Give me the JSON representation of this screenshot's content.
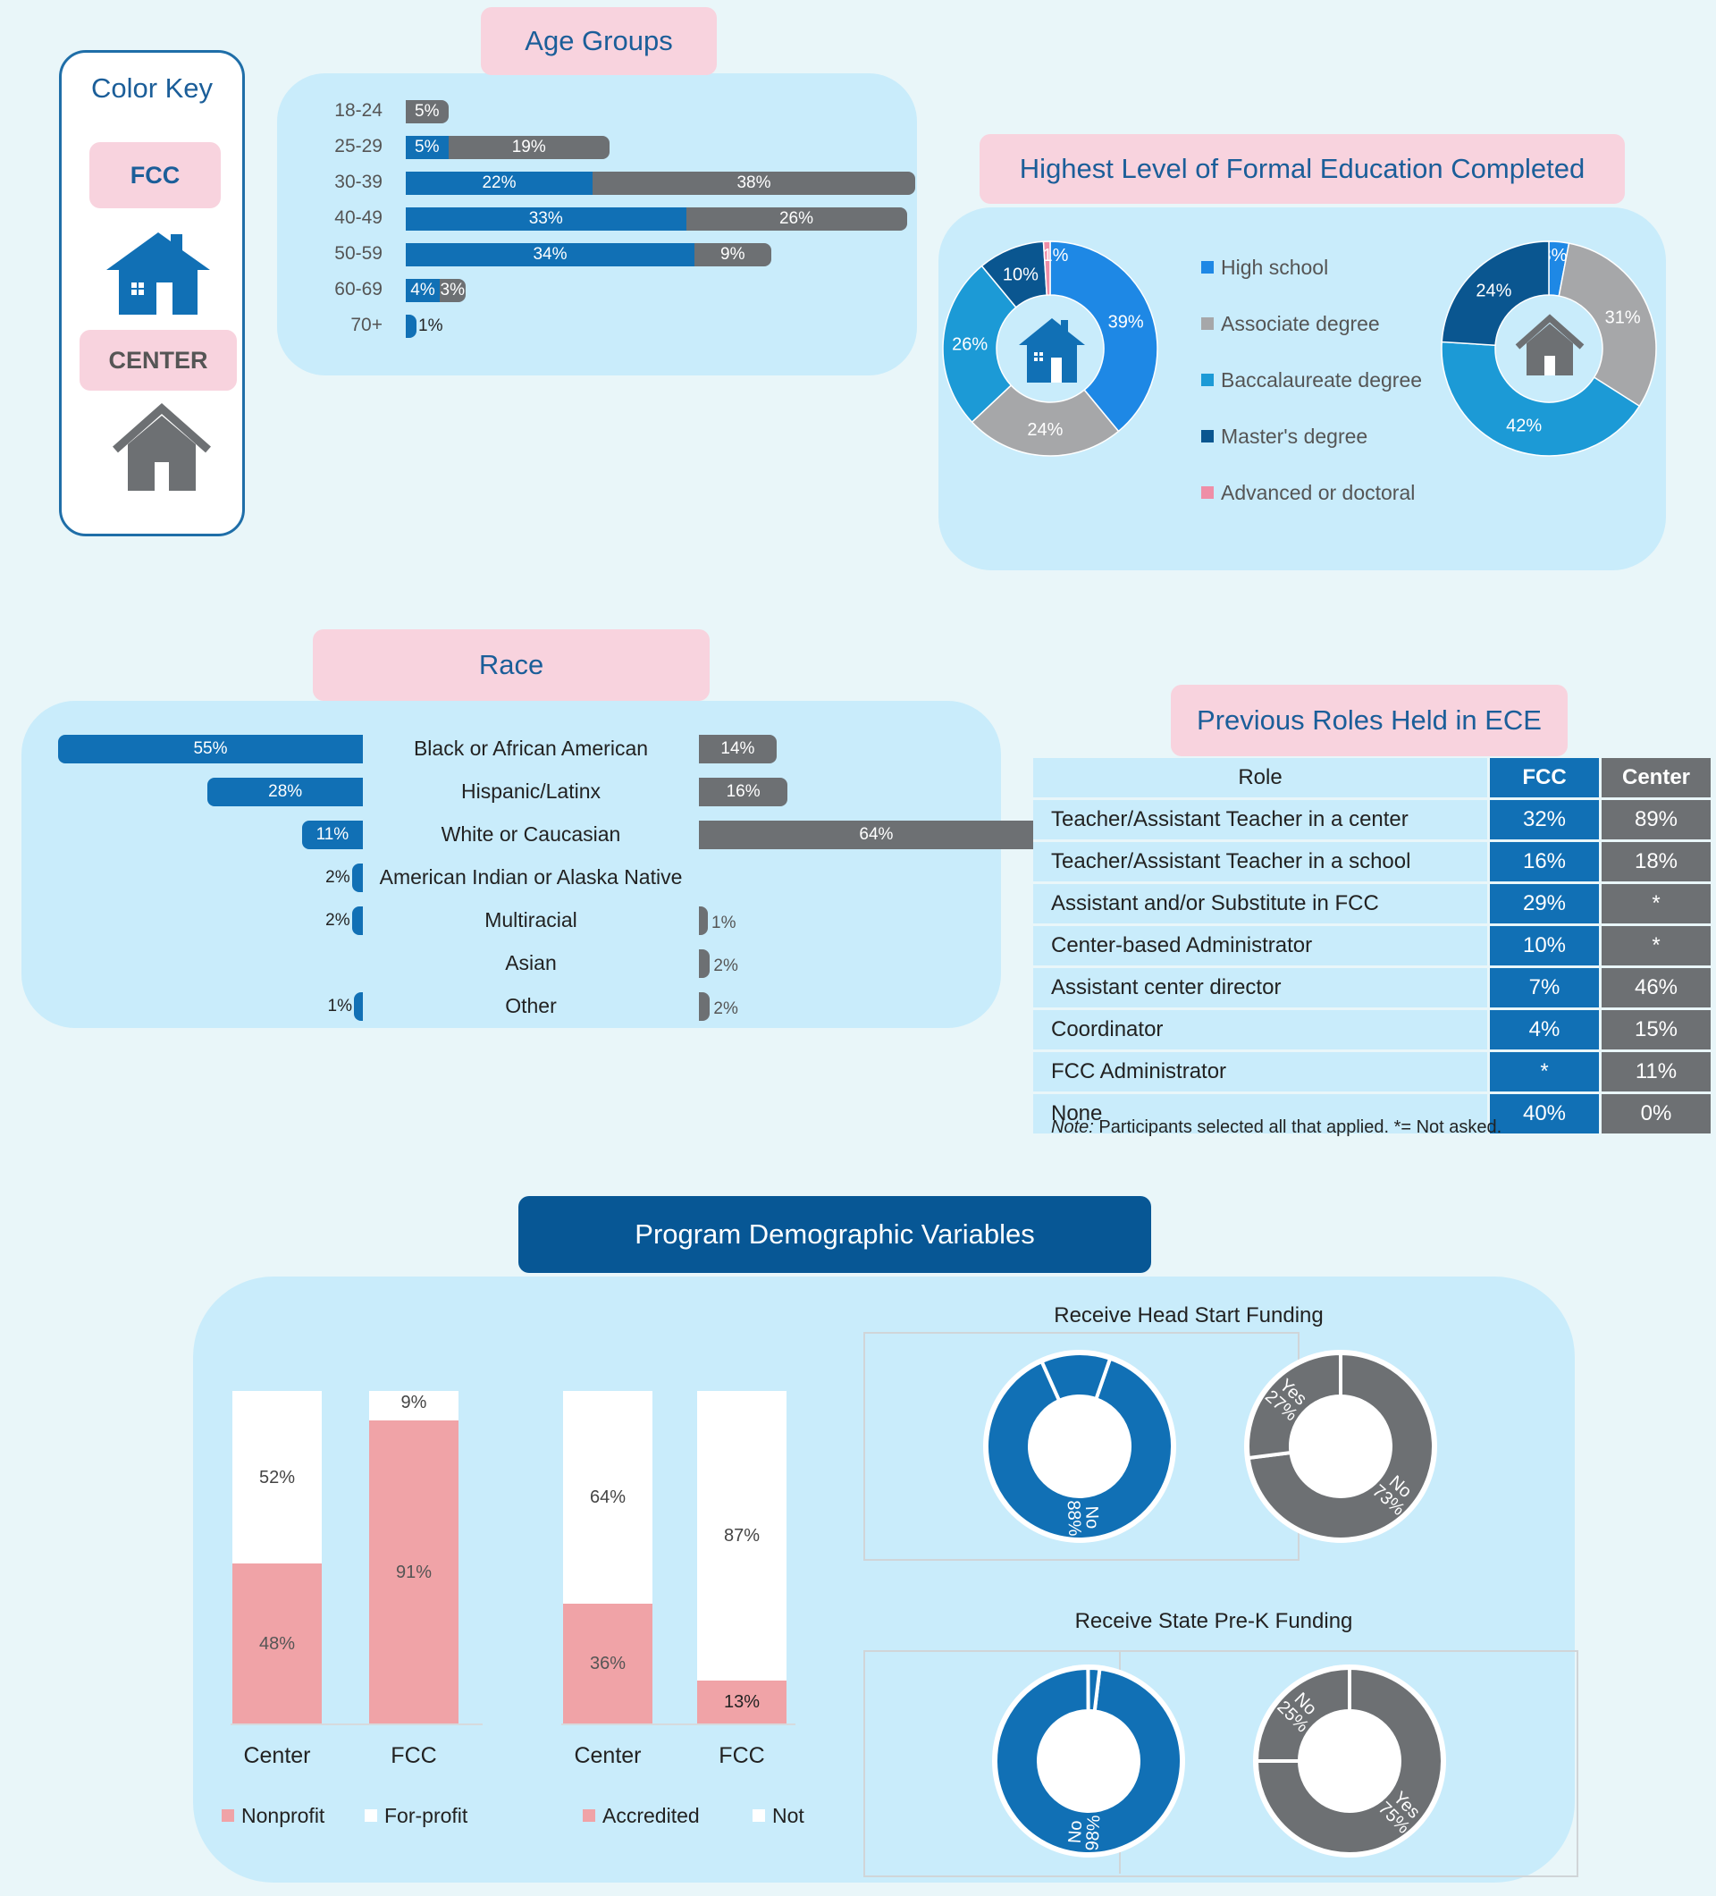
{
  "colors": {
    "fcc": "#1170b5",
    "center": "#6d7073",
    "pink": "#f8d3de",
    "panel": "#c9ecfb",
    "nonprofit": "#f0a3a7"
  },
  "color_key": {
    "title": "Color Key",
    "fcc_label": "FCC",
    "center_label": "CENTER",
    "fcc_icon": "house-icon",
    "center_icon": "house-outline-icon"
  },
  "titles": {
    "age": "Age Groups",
    "education": "Highest Level of Formal Education Completed",
    "race": "Race",
    "roles": "Previous Roles Held in ECE",
    "program": "Program Demographic Variables"
  },
  "chart_data": [
    {
      "type": "bar",
      "title": "Age Groups",
      "categories": [
        "18-24",
        "25-29",
        "30-39",
        "40-49",
        "50-59",
        "60-69",
        "70+"
      ],
      "series": [
        {
          "name": "FCC",
          "values": [
            null,
            5,
            22,
            33,
            34,
            4,
            1
          ],
          "labels": [
            "",
            "5%",
            "22%",
            "33%",
            "34%",
            "4%",
            "1%"
          ]
        },
        {
          "name": "CENTER",
          "values": [
            5,
            19,
            38,
            26,
            9,
            3,
            null
          ],
          "labels": [
            "5%",
            "19%",
            "38%",
            "26%",
            "9%",
            "3%",
            ""
          ]
        }
      ]
    },
    {
      "type": "pie",
      "title": "Highest Level of Formal Education Completed",
      "categories": [
        "High school",
        "Associate degree",
        "Baccalaureate degree",
        "Master's degree",
        "Advanced or doctoral"
      ],
      "colors": [
        "#1e88e5",
        "#a6a7a9",
        "#1c9ad6",
        "#0a5690",
        "#ef8ea7"
      ],
      "series": [
        {
          "name": "FCC",
          "values": [
            39,
            24,
            26,
            10,
            1
          ],
          "labels": [
            "39%",
            "24%",
            "26%",
            "10%",
            "1%"
          ]
        },
        {
          "name": "CENTER",
          "values": [
            3,
            31,
            42,
            24,
            0
          ],
          "labels": [
            "3%",
            "31%",
            "42%",
            "24%",
            ""
          ]
        }
      ]
    },
    {
      "type": "bar",
      "title": "Race",
      "categories": [
        "Black or African American",
        "Hispanic/Latinx",
        "White or Caucasian",
        "American Indian or Alaska Native",
        "Multiracial",
        "Asian",
        "Other"
      ],
      "series": [
        {
          "name": "FCC",
          "values": [
            55,
            28,
            11,
            2,
            2,
            null,
            1
          ],
          "labels": [
            "55%",
            "28%",
            "11%",
            "2%",
            "2%",
            "",
            "1%"
          ]
        },
        {
          "name": "CENTER",
          "values": [
            14,
            16,
            64,
            null,
            1,
            2,
            2
          ],
          "labels": [
            "14%",
            "16%",
            "64%",
            "",
            "1%",
            "2%",
            "2%"
          ]
        }
      ]
    },
    {
      "type": "table",
      "title": "Previous Roles Held in ECE",
      "columns": [
        "Role",
        "FCC",
        "Center"
      ],
      "rows": [
        [
          "Teacher/Assistant Teacher in a center",
          "32%",
          "89%"
        ],
        [
          "Teacher/Assistant Teacher in a school",
          "16%",
          "18%"
        ],
        [
          "Assistant and/or Substitute in FCC",
          "29%",
          "*"
        ],
        [
          "Center-based Administrator",
          "10%",
          "*"
        ],
        [
          "Assistant center director",
          "7%",
          "46%"
        ],
        [
          "Coordinator",
          "4%",
          "15%"
        ],
        [
          "FCC Administrator",
          "*",
          "11%"
        ],
        [
          "None",
          "40%",
          "0%"
        ]
      ],
      "note_label": "Note:",
      "note_text": " Participants selected all that applied. *= Not asked."
    },
    {
      "type": "bar",
      "stacked": true,
      "categories": [
        "Center",
        "FCC"
      ],
      "series": [
        {
          "name": "Nonprofit",
          "values": [
            48,
            91
          ],
          "labels": [
            "48%",
            "91%"
          ]
        },
        {
          "name": "For-profit",
          "values": [
            52,
            9
          ],
          "labels": [
            "52%",
            "9%"
          ]
        }
      ]
    },
    {
      "type": "bar",
      "stacked": true,
      "categories": [
        "Center",
        "FCC"
      ],
      "series": [
        {
          "name": "Accredited",
          "values": [
            36,
            13
          ],
          "labels": [
            "36%",
            "13%"
          ]
        },
        {
          "name": "Not",
          "values": [
            64,
            87
          ],
          "labels": [
            "64%",
            "87%"
          ]
        }
      ]
    },
    {
      "type": "pie",
      "title": "Receive Head Start Funding",
      "series": [
        {
          "name": "FCC",
          "slices": [
            {
              "label": "No",
              "value": 88
            },
            {
              "label": "Yes",
              "value": 12
            }
          ]
        },
        {
          "name": "CENTER",
          "slices": [
            {
              "label": "No",
              "value": 73
            },
            {
              "label": "Yes",
              "value": 27
            }
          ]
        }
      ]
    },
    {
      "type": "pie",
      "title": "Receive State Pre-K Funding",
      "series": [
        {
          "name": "FCC",
          "slices": [
            {
              "label": "No",
              "value": 98
            },
            {
              "label": "Yes",
              "value": 2
            }
          ]
        },
        {
          "name": "CENTER",
          "slices": [
            {
              "label": "Yes",
              "value": 75
            },
            {
              "label": "No",
              "value": 25
            }
          ]
        }
      ]
    }
  ]
}
